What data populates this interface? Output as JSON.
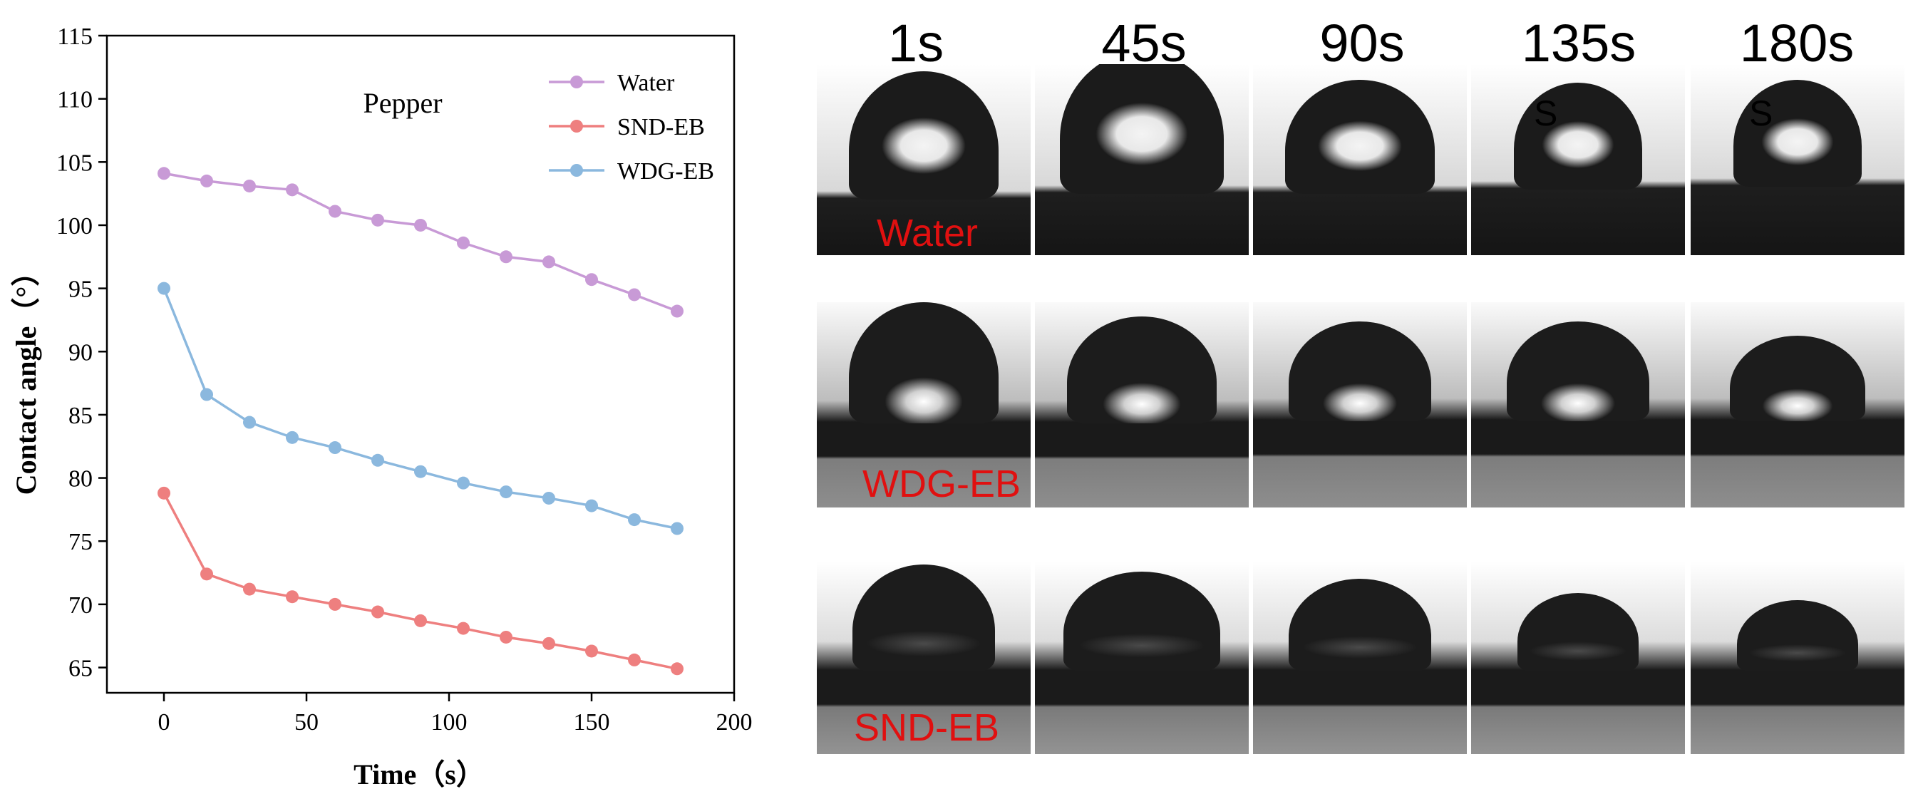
{
  "chart_data": {
    "type": "line",
    "annotation": "Pepper",
    "xlabel": "Time（s）",
    "ylabel": "Contact angle（°）",
    "xlim": [
      -20,
      200
    ],
    "ylim": [
      63,
      115
    ],
    "xticks": [
      0,
      50,
      100,
      150,
      200
    ],
    "yticks": [
      65,
      70,
      75,
      80,
      85,
      90,
      95,
      100,
      105,
      110,
      115
    ],
    "x": [
      0,
      15,
      30,
      45,
      60,
      75,
      90,
      105,
      120,
      135,
      150,
      165,
      180
    ],
    "series": [
      {
        "name": "Water",
        "color": "#c89ad6",
        "values": [
          104.1,
          103.5,
          103.1,
          102.8,
          101.1,
          100.4,
          100.0,
          98.6,
          97.5,
          97.1,
          95.7,
          94.5,
          93.2
        ]
      },
      {
        "name": "SND-EB",
        "color": "#ee7f7f",
        "values": [
          78.8,
          72.4,
          71.2,
          70.6,
          70.0,
          69.4,
          68.7,
          68.1,
          67.4,
          66.9,
          66.3,
          65.6,
          64.9
        ]
      },
      {
        "name": "WDG-EB",
        "color": "#8bb8de",
        "values": [
          95.0,
          86.6,
          84.4,
          83.2,
          82.4,
          81.4,
          80.5,
          79.6,
          78.9,
          78.4,
          77.8,
          76.7,
          76.0
        ]
      }
    ]
  },
  "photos": {
    "columns": [
      "1s",
      "45s",
      "90s",
      "135s",
      "180s"
    ],
    "rows": [
      "Water",
      "WDG-EB",
      "SND-EB"
    ],
    "stray_marks": [
      "S",
      "S"
    ]
  }
}
